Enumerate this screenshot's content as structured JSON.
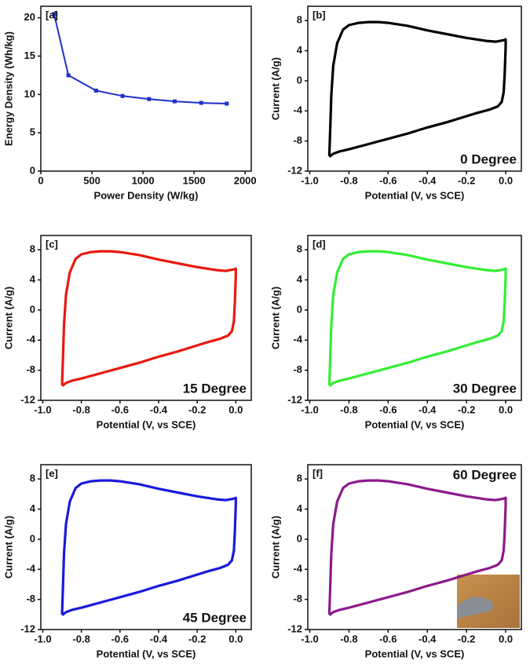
{
  "chart_data": [
    {
      "type": "line",
      "label": "[a]",
      "xlabel": "Power Density (W/kg)",
      "ylabel": "Energy Density (Wh/kg)",
      "color": "#1f2fc8",
      "markers": true,
      "x": [
        130,
        270,
        540,
        800,
        1060,
        1310,
        1570,
        1820
      ],
      "values": [
        20.5,
        12.5,
        10.5,
        9.8,
        9.4,
        9.1,
        8.9,
        8.8
      ],
      "xlim": [
        0,
        2060
      ],
      "xticks": [
        0,
        500,
        1000,
        1500,
        2000
      ],
      "ylim": [
        0,
        21.5
      ],
      "yticks": [
        0,
        5,
        10,
        15,
        20
      ]
    },
    {
      "type": "line",
      "label": "[b]",
      "annotation": "0 Degree",
      "xlabel": "Potential (V, vs SCE)",
      "ylabel": "Current (A/g)",
      "color": "#000000",
      "markers": false,
      "x": [
        -0.9,
        -0.895,
        -0.89,
        -0.88,
        -0.86,
        -0.83,
        -0.8,
        -0.75,
        -0.7,
        -0.65,
        -0.6,
        -0.5,
        -0.4,
        -0.3,
        -0.2,
        -0.1,
        -0.05,
        -0.01,
        0,
        0,
        -0.005,
        -0.01,
        -0.02,
        -0.04,
        -0.08,
        -0.15,
        -0.2,
        -0.3,
        -0.4,
        -0.5,
        -0.6,
        -0.7,
        -0.8,
        -0.85,
        -0.88,
        -0.9
      ],
      "values": [
        -10,
        -6,
        -2,
        2,
        5,
        6.8,
        7.4,
        7.7,
        7.8,
        7.8,
        7.7,
        7.3,
        6.7,
        6.2,
        5.7,
        5.3,
        5.2,
        5.4,
        5.5,
        4.5,
        1,
        -1.5,
        -2.8,
        -3.4,
        -3.8,
        -4.3,
        -4.7,
        -5.5,
        -6.2,
        -7.0,
        -7.7,
        -8.4,
        -9.1,
        -9.4,
        -9.7,
        -10.1
      ],
      "xlim": [
        -1.01,
        0.08
      ],
      "xticks": [
        {
          "value": -1.0,
          "label": "-1.0"
        },
        -0.8,
        -0.6,
        -0.4,
        -0.2,
        {
          "value": 0,
          "label": "0.0"
        }
      ],
      "ylim": [
        -12,
        9.9
      ],
      "yticks": [
        -12,
        -8,
        -4,
        0,
        4,
        8
      ]
    },
    {
      "type": "line",
      "label": "[c]",
      "annotation": "15 Degree",
      "xlabel": "Potential (V, vs SCE)",
      "ylabel": "Current (A/g)",
      "color": "#e8190f",
      "markers": false,
      "x": [
        -0.9,
        -0.895,
        -0.89,
        -0.88,
        -0.86,
        -0.83,
        -0.8,
        -0.75,
        -0.7,
        -0.65,
        -0.6,
        -0.5,
        -0.4,
        -0.3,
        -0.2,
        -0.1,
        -0.05,
        -0.01,
        0,
        0,
        -0.005,
        -0.01,
        -0.02,
        -0.04,
        -0.08,
        -0.15,
        -0.2,
        -0.3,
        -0.4,
        -0.5,
        -0.6,
        -0.7,
        -0.8,
        -0.85,
        -0.88,
        -0.9
      ],
      "values": [
        -10,
        -6,
        -2,
        2,
        5,
        6.8,
        7.4,
        7.7,
        7.8,
        7.8,
        7.7,
        7.3,
        6.7,
        6.2,
        5.7,
        5.3,
        5.2,
        5.4,
        5.5,
        4.5,
        1,
        -1.5,
        -2.8,
        -3.4,
        -3.8,
        -4.3,
        -4.7,
        -5.5,
        -6.2,
        -7.0,
        -7.7,
        -8.4,
        -9.1,
        -9.4,
        -9.7,
        -10.1
      ],
      "xlim": [
        -1.01,
        0.08
      ],
      "xticks": [
        {
          "value": -1.0,
          "label": "-1.0"
        },
        -0.8,
        -0.6,
        -0.4,
        -0.2,
        {
          "value": 0,
          "label": "0.0"
        }
      ],
      "ylim": [
        -12,
        9.9
      ],
      "yticks": [
        -12,
        -8,
        -4,
        0,
        4,
        8
      ]
    },
    {
      "type": "line",
      "label": "[d]",
      "annotation": "30 Degree",
      "xlabel": "Potential (V, vs SCE)",
      "ylabel": "Current (A/g)",
      "color": "#33ee33",
      "markers": false,
      "x": [
        -0.9,
        -0.895,
        -0.89,
        -0.88,
        -0.86,
        -0.83,
        -0.8,
        -0.75,
        -0.7,
        -0.65,
        -0.6,
        -0.5,
        -0.4,
        -0.3,
        -0.2,
        -0.1,
        -0.05,
        -0.01,
        0,
        0,
        -0.005,
        -0.01,
        -0.02,
        -0.04,
        -0.08,
        -0.15,
        -0.2,
        -0.3,
        -0.4,
        -0.5,
        -0.6,
        -0.7,
        -0.8,
        -0.85,
        -0.88,
        -0.9
      ],
      "values": [
        -10,
        -6,
        -2,
        2,
        5,
        6.8,
        7.4,
        7.7,
        7.8,
        7.8,
        7.7,
        7.3,
        6.7,
        6.2,
        5.7,
        5.3,
        5.2,
        5.4,
        5.5,
        4.5,
        1,
        -1.5,
        -2.8,
        -3.4,
        -3.8,
        -4.3,
        -4.7,
        -5.5,
        -6.2,
        -7.0,
        -7.7,
        -8.4,
        -9.1,
        -9.4,
        -9.7,
        -10.1
      ],
      "xlim": [
        -1.01,
        0.08
      ],
      "xticks": [
        {
          "value": -1.0,
          "label": "-1.0"
        },
        -0.8,
        -0.6,
        -0.4,
        -0.2,
        {
          "value": 0,
          "label": "0.0"
        }
      ],
      "ylim": [
        -12,
        9.9
      ],
      "yticks": [
        -12,
        -8,
        -4,
        0,
        4,
        8
      ]
    },
    {
      "type": "line",
      "label": "[e]",
      "annotation": "45 Degree",
      "xlabel": "Potential (V, vs SCE)",
      "ylabel": "Current (A/g)",
      "color": "#1a1adc",
      "markers": false,
      "x": [
        -0.9,
        -0.895,
        -0.89,
        -0.88,
        -0.86,
        -0.83,
        -0.8,
        -0.75,
        -0.7,
        -0.65,
        -0.6,
        -0.5,
        -0.4,
        -0.3,
        -0.2,
        -0.1,
        -0.05,
        -0.01,
        0,
        0,
        -0.005,
        -0.01,
        -0.02,
        -0.04,
        -0.08,
        -0.15,
        -0.2,
        -0.3,
        -0.4,
        -0.5,
        -0.6,
        -0.7,
        -0.8,
        -0.85,
        -0.88,
        -0.9
      ],
      "values": [
        -10,
        -6,
        -2,
        2,
        5,
        6.8,
        7.4,
        7.7,
        7.8,
        7.8,
        7.7,
        7.3,
        6.7,
        6.2,
        5.7,
        5.3,
        5.2,
        5.4,
        5.5,
        4.5,
        1,
        -1.5,
        -2.8,
        -3.4,
        -3.8,
        -4.3,
        -4.7,
        -5.5,
        -6.2,
        -7.0,
        -7.7,
        -8.4,
        -9.1,
        -9.4,
        -9.7,
        -10.1
      ],
      "xlim": [
        -1.01,
        0.08
      ],
      "xticks": [
        {
          "value": -1.0,
          "label": "-1.0"
        },
        -0.8,
        -0.6,
        -0.4,
        -0.2,
        {
          "value": 0,
          "label": "0.0"
        }
      ],
      "ylim": [
        -12,
        9.9
      ],
      "yticks": [
        -12,
        -8,
        -4,
        0,
        4,
        8
      ]
    },
    {
      "type": "line",
      "label": "[f]",
      "annotation": "60 Degree",
      "xlabel": "Potential (V, vs SCE)",
      "ylabel": "Current (A/g)",
      "color": "#8b1a8b",
      "markers": false,
      "x": [
        -0.9,
        -0.895,
        -0.89,
        -0.88,
        -0.86,
        -0.83,
        -0.8,
        -0.75,
        -0.7,
        -0.65,
        -0.6,
        -0.5,
        -0.4,
        -0.3,
        -0.2,
        -0.1,
        -0.05,
        -0.01,
        0,
        0,
        -0.005,
        -0.01,
        -0.02,
        -0.04,
        -0.08,
        -0.15,
        -0.2,
        -0.3,
        -0.4,
        -0.5,
        -0.6,
        -0.7,
        -0.8,
        -0.85,
        -0.88,
        -0.9
      ],
      "values": [
        -10,
        -6,
        -2,
        2,
        5,
        6.8,
        7.4,
        7.7,
        7.8,
        7.8,
        7.7,
        7.3,
        6.7,
        6.2,
        5.7,
        5.3,
        5.2,
        5.4,
        5.5,
        4.5,
        1,
        -1.5,
        -2.8,
        -3.4,
        -3.8,
        -4.3,
        -4.7,
        -5.5,
        -6.2,
        -7.0,
        -7.7,
        -8.4,
        -9.1,
        -9.4,
        -9.7,
        -10.1
      ],
      "xlim": [
        -1.01,
        0.08
      ],
      "xticks": [
        {
          "value": -1.0,
          "label": "-1.0"
        },
        -0.8,
        -0.6,
        -0.4,
        -0.2,
        {
          "value": 0,
          "label": "0.0"
        }
      ],
      "ylim": [
        -12,
        9.9
      ],
      "yticks": [
        -12,
        -8,
        -4,
        0,
        4,
        8
      ]
    }
  ]
}
